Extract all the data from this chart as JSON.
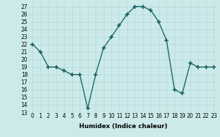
{
  "x": [
    0,
    1,
    2,
    3,
    4,
    5,
    6,
    7,
    8,
    9,
    10,
    11,
    12,
    13,
    14,
    15,
    16,
    17,
    18,
    19,
    20,
    21,
    22,
    23
  ],
  "y": [
    22,
    21,
    19,
    19,
    18.5,
    18,
    18,
    13.5,
    18,
    21.5,
    23,
    24.5,
    26,
    27,
    27,
    26.5,
    25,
    22.5,
    16,
    15.5,
    19.5,
    19,
    19,
    19
  ],
  "line_color": "#1a6060",
  "marker": "+",
  "marker_size": 4,
  "marker_lw": 1.2,
  "background_color": "#cceaea",
  "grid_color": "#b0d8d8",
  "xlabel": "Humidex (Indice chaleur)",
  "xlim": [
    -0.5,
    23.5
  ],
  "ylim": [
    13,
    27.5
  ],
  "yticks": [
    13,
    14,
    15,
    16,
    17,
    18,
    19,
    20,
    21,
    22,
    23,
    24,
    25,
    26,
    27
  ],
  "xticks": [
    0,
    1,
    2,
    3,
    4,
    5,
    6,
    7,
    8,
    9,
    10,
    11,
    12,
    13,
    14,
    15,
    16,
    17,
    18,
    19,
    20,
    21,
    22,
    23
  ],
  "xlabel_fontsize": 6.5,
  "tick_fontsize": 5.5,
  "line_width": 1.0
}
